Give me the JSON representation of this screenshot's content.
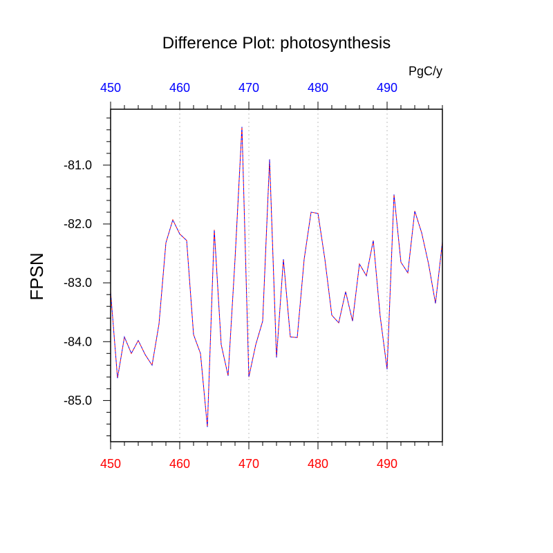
{
  "chart_data": {
    "type": "line",
    "title": "Difference Plot: photosynthesis",
    "ylabel": "FPSN",
    "units_label": "PgC/y",
    "xlim": [
      450,
      498
    ],
    "ylim": [
      -85.7,
      -80.05
    ],
    "x_ticks": [
      450,
      460,
      470,
      480,
      490
    ],
    "x_tick_labels": [
      "450",
      "460",
      "470",
      "480",
      "490"
    ],
    "y_ticks": [
      -85.0,
      -84.0,
      -83.0,
      -82.0,
      -81.0
    ],
    "y_tick_labels": [
      "-85.0",
      "-84.0",
      "-83.0",
      "-82.0",
      "-81.0"
    ],
    "grid": "vertical-dotted",
    "colors": {
      "bottom_tick_labels": "#ff0000",
      "top_tick_labels": "#0000ff",
      "series_dash_a": "#ff0000",
      "series_dash_b": "#0000ff",
      "grid": "#c8c8c8",
      "axes": "#000000"
    },
    "series": [
      {
        "x": [
          450,
          451,
          452,
          453,
          454,
          455,
          456,
          457,
          458,
          459,
          460,
          461,
          462,
          463,
          464,
          465,
          466,
          467,
          468,
          469,
          470,
          471,
          472,
          473,
          474,
          475,
          476,
          477,
          478,
          479,
          480,
          481,
          482,
          483,
          484,
          485,
          486,
          487,
          488,
          489,
          490,
          491,
          492,
          493,
          494,
          495,
          496,
          497,
          498
        ],
        "values": [
          -83.15,
          -84.62,
          -83.92,
          -84.2,
          -83.98,
          -84.22,
          -84.4,
          -83.7,
          -82.32,
          -81.93,
          -82.17,
          -82.28,
          -83.88,
          -84.2,
          -85.45,
          -82.1,
          -84.05,
          -84.58,
          -82.6,
          -80.35,
          -84.6,
          -84.05,
          -83.65,
          -80.9,
          -84.27,
          -82.6,
          -83.92,
          -83.93,
          -82.6,
          -81.8,
          -81.82,
          -82.6,
          -83.55,
          -83.68,
          -83.15,
          -83.65,
          -82.68,
          -82.88,
          -82.28,
          -83.57,
          -84.47,
          -81.5,
          -82.65,
          -82.83,
          -81.78,
          -82.15,
          -82.68,
          -83.35,
          -82.3
        ]
      }
    ]
  }
}
